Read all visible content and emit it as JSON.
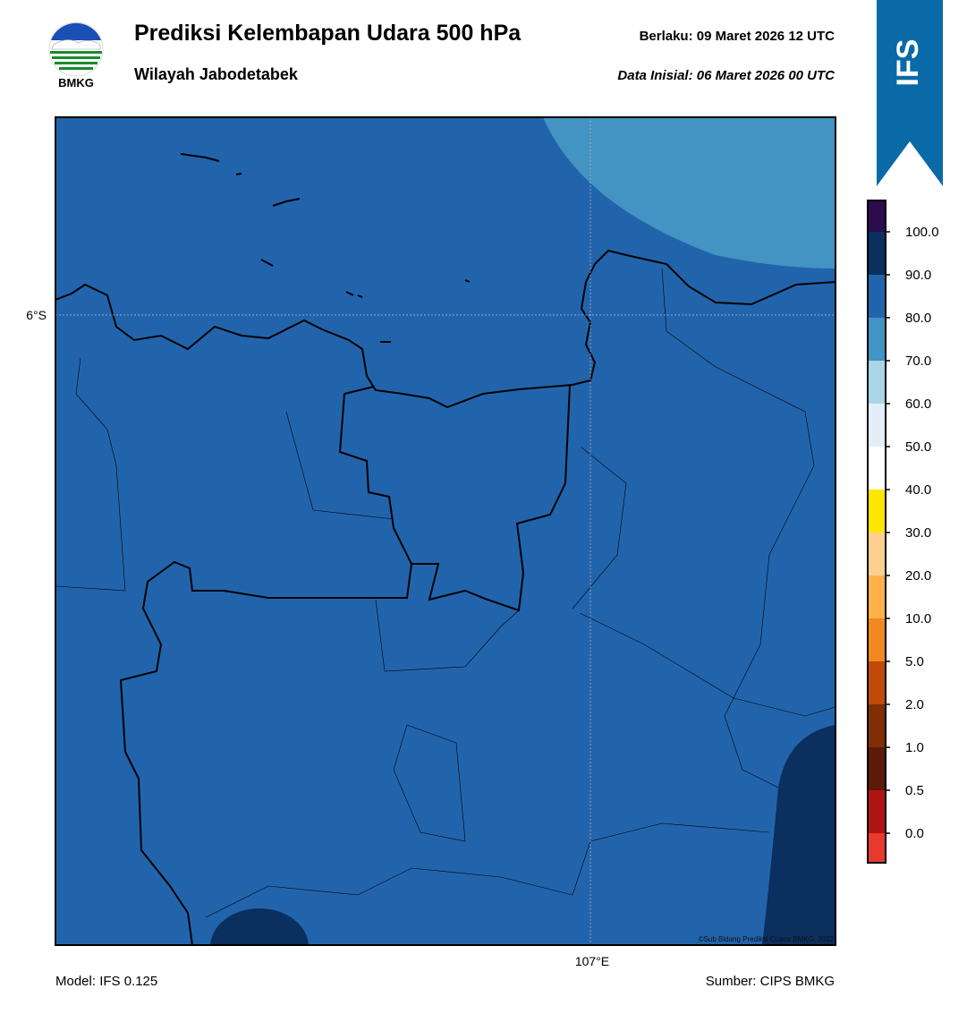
{
  "header": {
    "title": "Prediksi Kelembapan Udara 500 hPa",
    "subtitle": "Wilayah Jabodetabek",
    "valid": "Berlaku:  09 Maret 2026 12 UTC",
    "init": "Data Inisial:  06 Maret 2026 00 UTC",
    "logo_text": "BMKG",
    "badge": "IFS"
  },
  "map": {
    "lat_label": "6°S",
    "lon_label": "107°E",
    "copyright": "©Sub Bidang Prediksi Cuaca BMKG, 2022"
  },
  "colorbar": {
    "ticks": [
      {
        "value": 0,
        "label": "0.0"
      },
      {
        "value": 0.5,
        "label": "0.5"
      },
      {
        "value": 1,
        "label": "1.0"
      },
      {
        "value": 2,
        "label": "2.0"
      },
      {
        "value": 5,
        "label": "5.0"
      },
      {
        "value": 10,
        "label": "10.0"
      },
      {
        "value": 20,
        "label": "20.0"
      },
      {
        "value": 30,
        "label": "30.0"
      },
      {
        "value": 40,
        "label": "40.0"
      },
      {
        "value": 50,
        "label": "50.0"
      },
      {
        "value": 60,
        "label": "60.0"
      },
      {
        "value": 70,
        "label": "70.0"
      },
      {
        "value": 80,
        "label": "80.0"
      },
      {
        "value": 90,
        "label": "90.0"
      },
      {
        "value": 100,
        "label": "100.0"
      }
    ],
    "colors": [
      "#e8392e",
      "#b01515",
      "#5c1a0b",
      "#7f2e06",
      "#c04a0a",
      "#f08a20",
      "#fdb24a",
      "#fdd090",
      "#ffe600",
      "#ffffff",
      "#e4eef7",
      "#aad4e8",
      "#4393c3",
      "#2264ac",
      "#0b2f5e",
      "#2d0c4e"
    ]
  },
  "footer": {
    "model": "Model: IFS 0.125",
    "source": "Sumber: CIPS BMKG"
  }
}
